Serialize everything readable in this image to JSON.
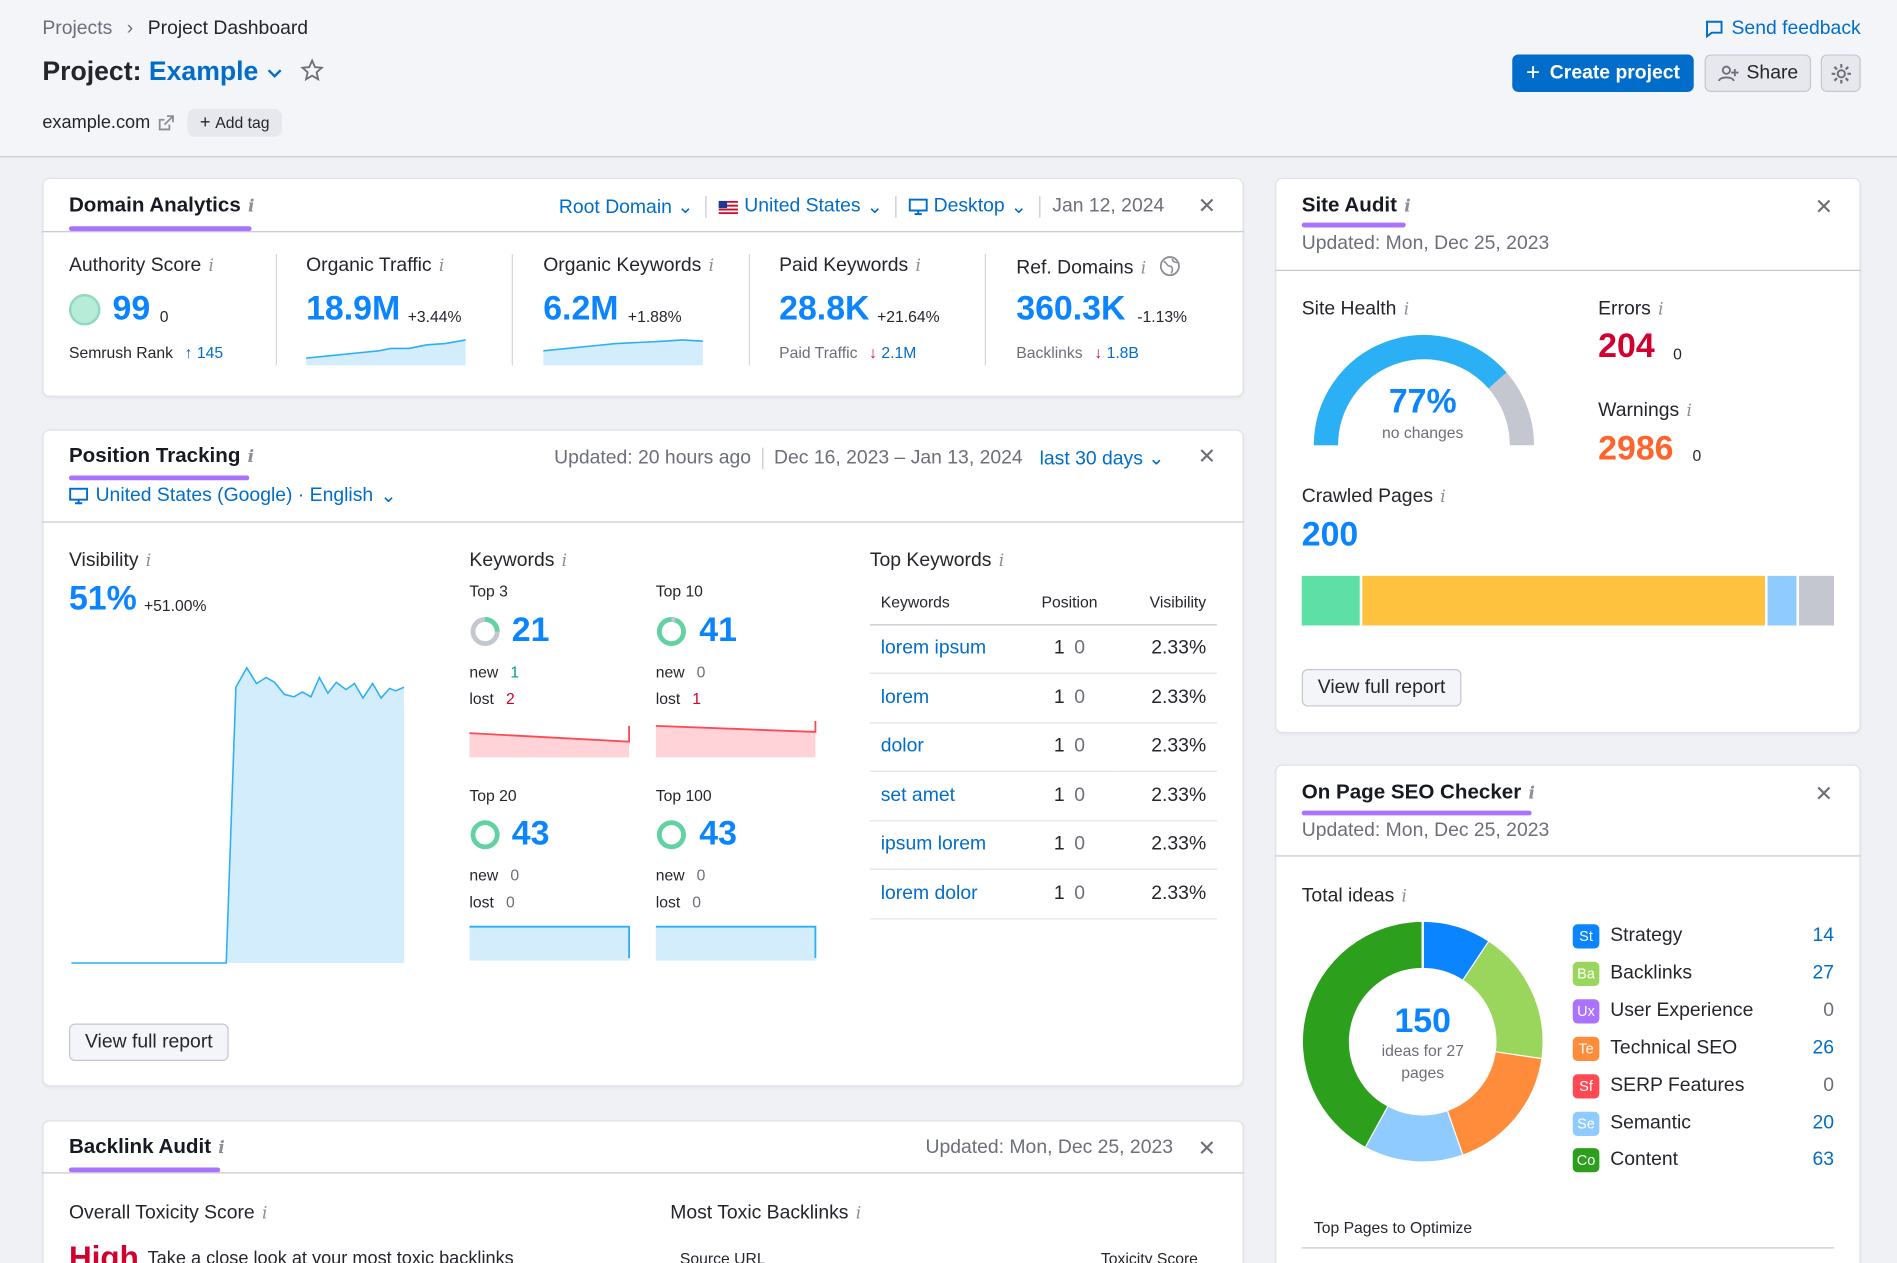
{
  "header": {
    "breadcrumb": [
      "Projects",
      "Project Dashboard"
    ],
    "title_prefix": "Project:",
    "project_name": "Example",
    "domain": "example.com",
    "add_tag": "Add tag",
    "feedback": "Send feedback",
    "create_label": "Create project",
    "share_label": "Share"
  },
  "domain_analytics": {
    "title": "Domain Analytics",
    "filters": {
      "scope": "Root Domain",
      "country": "United States",
      "device": "Desktop",
      "date": "Jan 12, 2024"
    },
    "metrics": [
      {
        "label": "Authority Score",
        "value": "99",
        "delta": "0",
        "sub_label": "Semrush Rank",
        "sub_value": "145"
      },
      {
        "label": "Organic Traffic",
        "value": "18.9M",
        "delta": "+3.44%"
      },
      {
        "label": "Organic Keywords",
        "value": "6.2M",
        "delta": "+1.88%"
      },
      {
        "label": "Paid Keywords",
        "value": "28.8K",
        "delta": "+21.64%",
        "sub_label": "Paid Traffic",
        "sub_value": "2.1M"
      },
      {
        "label": "Ref. Domains",
        "value": "360.3K",
        "delta": "-1.13%",
        "sub_label": "Backlinks",
        "sub_value": "1.8B"
      }
    ]
  },
  "position_tracking": {
    "title": "Position Tracking",
    "updated": "Updated: 20 hours ago",
    "date_range": "Dec 16, 2023 – Jan 13, 2024",
    "period": "last 30 days",
    "location": "United States (Google) · English",
    "visibility_label": "Visibility",
    "visibility_value": "51%",
    "visibility_delta": "+51.00%",
    "keywords_label": "Keywords",
    "buckets": [
      {
        "label": "Top 3",
        "value": "21",
        "new": "1",
        "lost": "2"
      },
      {
        "label": "Top 10",
        "value": "41",
        "new": "0",
        "lost": "1"
      },
      {
        "label": "Top 20",
        "value": "43",
        "new": "0",
        "lost": "0"
      },
      {
        "label": "Top 100",
        "value": "43",
        "new": "0",
        "lost": "0"
      }
    ],
    "new_label": "new",
    "lost_label": "lost",
    "top_keywords_label": "Top Keywords",
    "table_headers": [
      "Keywords",
      "Position",
      "Visibility"
    ],
    "rows": [
      {
        "keyword": "lorem ipsum",
        "position": "1",
        "change": "0",
        "visibility": "2.33%"
      },
      {
        "keyword": "lorem",
        "position": "1",
        "change": "0",
        "visibility": "2.33%"
      },
      {
        "keyword": "dolor",
        "position": "1",
        "change": "0",
        "visibility": "2.33%"
      },
      {
        "keyword": "set amet",
        "position": "1",
        "change": "0",
        "visibility": "2.33%"
      },
      {
        "keyword": "ipsum lorem",
        "position": "1",
        "change": "0",
        "visibility": "2.33%"
      },
      {
        "keyword": "lorem dolor",
        "position": "1",
        "change": "0",
        "visibility": "2.33%"
      }
    ],
    "view_report": "View full report"
  },
  "backlink_audit": {
    "title": "Backlink Audit",
    "updated": "Updated: Mon, Dec 25, 2023",
    "toxicity_label": "Overall Toxicity Score",
    "toxicity_value": "High",
    "toxicity_note": "Take a close look at your most toxic backlinks",
    "toxic_backlinks_label": "Most Toxic Backlinks",
    "col_source": "Source URL",
    "col_score": "Toxicity Score"
  },
  "site_audit": {
    "title": "Site Audit",
    "updated": "Updated: Mon, Dec 25, 2023",
    "health_label": "Site Health",
    "health_value": "77%",
    "health_fraction": 0.77,
    "health_note": "no changes",
    "errors_label": "Errors",
    "errors_value": "204",
    "errors_delta": "0",
    "warnings_label": "Warnings",
    "warnings_value": "2986",
    "warnings_delta": "0",
    "crawled_label": "Crawled Pages",
    "crawled_value": "200",
    "view_report": "View full report"
  },
  "onpage_seo": {
    "title": "On Page SEO Checker",
    "updated": "Updated: Mon, Dec 25, 2023",
    "ideas_label": "Total ideas",
    "total": "150",
    "total_note": "ideas for 27 pages",
    "categories": [
      {
        "abbr": "St",
        "name": "Strategy",
        "count": "14",
        "color": "#0a84ff"
      },
      {
        "abbr": "Ba",
        "name": "Backlinks",
        "count": "27",
        "color": "#9ad65c"
      },
      {
        "abbr": "Ux",
        "name": "User Experience",
        "count": "0",
        "color": "#a972ff"
      },
      {
        "abbr": "Te",
        "name": "Technical SEO",
        "count": "26",
        "color": "#ff8c3a"
      },
      {
        "abbr": "Sf",
        "name": "SERP Features",
        "count": "0",
        "color": "#ff4953"
      },
      {
        "abbr": "Se",
        "name": "Semantic",
        "count": "20",
        "color": "#8fcbff"
      },
      {
        "abbr": "Co",
        "name": "Content",
        "count": "63",
        "color": "#2ca01c"
      }
    ],
    "top_pages_label": "Top Pages to Optimize"
  },
  "colors": {
    "accent": "#006dca",
    "brand_purple": "#a972ff",
    "error_red": "#d1002f",
    "warning_orange": "#ff642d"
  }
}
